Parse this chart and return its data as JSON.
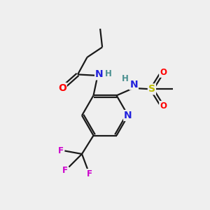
{
  "bg_color": "#efefef",
  "bond_color": "#1a1a1a",
  "bond_width": 1.6,
  "atom_colors": {
    "O": "#ff0000",
    "N": "#2222dd",
    "F": "#cc00cc",
    "S": "#bbbb00",
    "H": "#4a9090",
    "C": "#1a1a1a"
  },
  "font_size_large": 10,
  "font_size_small": 8.5
}
